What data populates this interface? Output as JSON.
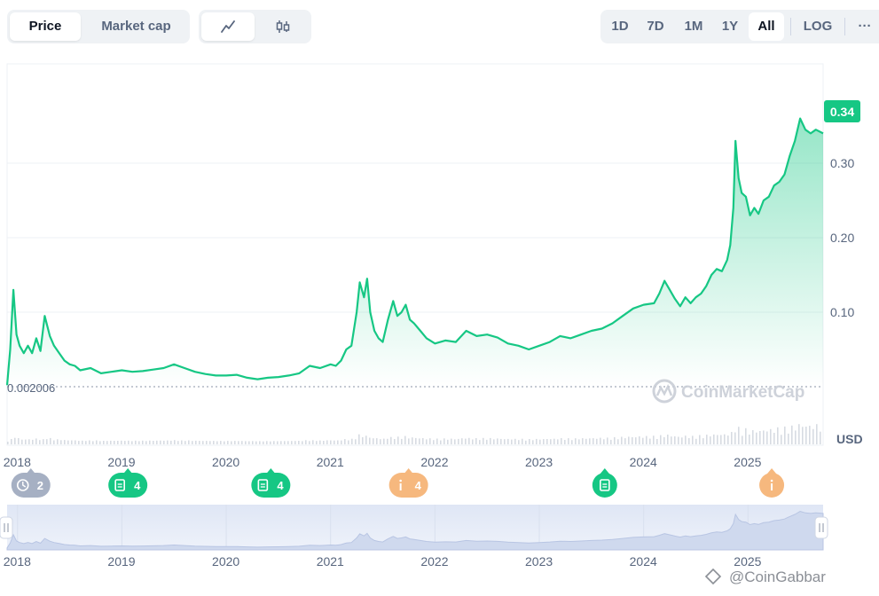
{
  "toolbar": {
    "type_toggle": {
      "price_label": "Price",
      "market_cap_label": "Market cap",
      "active": "price"
    },
    "chart_style": {
      "line_icon": "line-chart-icon",
      "candle_icon": "candlestick-icon",
      "active": "line"
    },
    "ranges": [
      {
        "label": "1D",
        "active": false
      },
      {
        "label": "7D",
        "active": false
      },
      {
        "label": "1M",
        "active": false
      },
      {
        "label": "1Y",
        "active": false
      },
      {
        "label": "All",
        "active": true
      }
    ],
    "log_label": "LOG",
    "more_label": "···"
  },
  "colors": {
    "line": "#16c784",
    "fill_top": "#16c784",
    "badge_green": "#16c784",
    "badge_orange": "#f6b87e",
    "badge_gray": "#a6b0c3",
    "grid": "#eef0f4",
    "volume": "#d7dbe2"
  },
  "chart_data": {
    "type": "line",
    "currency_label": "USD",
    "current_price_label": "0.34",
    "min_price_label": "0.002006",
    "watermark": "CoinMarketCap",
    "y_ticks": [
      {
        "value": 0.1,
        "label": "0.10"
      },
      {
        "value": 0.2,
        "label": "0.20"
      },
      {
        "value": 0.3,
        "label": "0.30"
      }
    ],
    "ylim": [
      0.0,
      0.4
    ],
    "xlim": [
      2017.9,
      2025.72
    ],
    "x_ticks": [
      "2018",
      "2019",
      "2020",
      "2021",
      "2022",
      "2023",
      "2024",
      "2025"
    ],
    "x_tick_values": [
      2018,
      2019,
      2020,
      2021,
      2022,
      2023,
      2024,
      2025
    ],
    "series": [
      {
        "values": [
          [
            2017.9,
            0.002
          ],
          [
            2017.93,
            0.05
          ],
          [
            2017.96,
            0.13
          ],
          [
            2017.99,
            0.07
          ],
          [
            2018.02,
            0.055
          ],
          [
            2018.06,
            0.045
          ],
          [
            2018.1,
            0.055
          ],
          [
            2018.14,
            0.045
          ],
          [
            2018.18,
            0.065
          ],
          [
            2018.22,
            0.048
          ],
          [
            2018.26,
            0.095
          ],
          [
            2018.31,
            0.068
          ],
          [
            2018.35,
            0.055
          ],
          [
            2018.4,
            0.045
          ],
          [
            2018.45,
            0.035
          ],
          [
            2018.5,
            0.03
          ],
          [
            2018.55,
            0.028
          ],
          [
            2018.6,
            0.022
          ],
          [
            2018.7,
            0.025
          ],
          [
            2018.8,
            0.018
          ],
          [
            2018.9,
            0.02
          ],
          [
            2019.0,
            0.022
          ],
          [
            2019.1,
            0.02
          ],
          [
            2019.2,
            0.021
          ],
          [
            2019.3,
            0.023
          ],
          [
            2019.4,
            0.025
          ],
          [
            2019.5,
            0.03
          ],
          [
            2019.6,
            0.025
          ],
          [
            2019.7,
            0.02
          ],
          [
            2019.8,
            0.017
          ],
          [
            2019.9,
            0.015
          ],
          [
            2020.0,
            0.015
          ],
          [
            2020.1,
            0.016
          ],
          [
            2020.2,
            0.012
          ],
          [
            2020.3,
            0.01
          ],
          [
            2020.4,
            0.012
          ],
          [
            2020.5,
            0.013
          ],
          [
            2020.6,
            0.015
          ],
          [
            2020.7,
            0.018
          ],
          [
            2020.8,
            0.028
          ],
          [
            2020.9,
            0.025
          ],
          [
            2021.0,
            0.03
          ],
          [
            2021.05,
            0.028
          ],
          [
            2021.1,
            0.035
          ],
          [
            2021.15,
            0.05
          ],
          [
            2021.2,
            0.055
          ],
          [
            2021.25,
            0.1
          ],
          [
            2021.28,
            0.14
          ],
          [
            2021.32,
            0.12
          ],
          [
            2021.35,
            0.145
          ],
          [
            2021.38,
            0.1
          ],
          [
            2021.42,
            0.075
          ],
          [
            2021.46,
            0.065
          ],
          [
            2021.5,
            0.06
          ],
          [
            2021.55,
            0.09
          ],
          [
            2021.6,
            0.115
          ],
          [
            2021.64,
            0.095
          ],
          [
            2021.68,
            0.1
          ],
          [
            2021.72,
            0.11
          ],
          [
            2021.76,
            0.09
          ],
          [
            2021.8,
            0.085
          ],
          [
            2021.86,
            0.075
          ],
          [
            2021.92,
            0.065
          ],
          [
            2022.0,
            0.058
          ],
          [
            2022.1,
            0.062
          ],
          [
            2022.2,
            0.06
          ],
          [
            2022.3,
            0.075
          ],
          [
            2022.4,
            0.068
          ],
          [
            2022.5,
            0.07
          ],
          [
            2022.6,
            0.066
          ],
          [
            2022.7,
            0.058
          ],
          [
            2022.8,
            0.055
          ],
          [
            2022.9,
            0.05
          ],
          [
            2023.0,
            0.055
          ],
          [
            2023.1,
            0.06
          ],
          [
            2023.2,
            0.068
          ],
          [
            2023.3,
            0.065
          ],
          [
            2023.4,
            0.07
          ],
          [
            2023.5,
            0.075
          ],
          [
            2023.6,
            0.078
          ],
          [
            2023.7,
            0.085
          ],
          [
            2023.8,
            0.095
          ],
          [
            2023.9,
            0.105
          ],
          [
            2024.0,
            0.11
          ],
          [
            2024.1,
            0.112
          ],
          [
            2024.15,
            0.125
          ],
          [
            2024.2,
            0.142
          ],
          [
            2024.25,
            0.13
          ],
          [
            2024.3,
            0.118
          ],
          [
            2024.35,
            0.108
          ],
          [
            2024.4,
            0.12
          ],
          [
            2024.45,
            0.112
          ],
          [
            2024.5,
            0.12
          ],
          [
            2024.55,
            0.125
          ],
          [
            2024.6,
            0.135
          ],
          [
            2024.65,
            0.15
          ],
          [
            2024.7,
            0.158
          ],
          [
            2024.75,
            0.155
          ],
          [
            2024.8,
            0.17
          ],
          [
            2024.83,
            0.19
          ],
          [
            2024.86,
            0.24
          ],
          [
            2024.88,
            0.33
          ],
          [
            2024.91,
            0.28
          ],
          [
            2024.94,
            0.26
          ],
          [
            2024.98,
            0.255
          ],
          [
            2025.02,
            0.23
          ],
          [
            2025.06,
            0.24
          ],
          [
            2025.1,
            0.232
          ],
          [
            2025.15,
            0.25
          ],
          [
            2025.2,
            0.255
          ],
          [
            2025.25,
            0.27
          ],
          [
            2025.3,
            0.275
          ],
          [
            2025.35,
            0.285
          ],
          [
            2025.4,
            0.31
          ],
          [
            2025.45,
            0.33
          ],
          [
            2025.5,
            0.36
          ],
          [
            2025.55,
            0.345
          ],
          [
            2025.6,
            0.34
          ],
          [
            2025.65,
            0.345
          ],
          [
            2025.72,
            0.34
          ]
        ]
      }
    ],
    "events": [
      {
        "x": 2018.0,
        "kind": "history",
        "count": "2",
        "color": "gray"
      },
      {
        "x": 2018.93,
        "kind": "document",
        "count": "4",
        "color": "green"
      },
      {
        "x": 2020.3,
        "kind": "document",
        "count": "4",
        "color": "green"
      },
      {
        "x": 2021.62,
        "kind": "info",
        "count": "4",
        "color": "orange"
      },
      {
        "x": 2023.5,
        "kind": "document",
        "count": "",
        "color": "green"
      },
      {
        "x": 2025.1,
        "kind": "info",
        "count": "",
        "color": "orange"
      }
    ]
  },
  "navigator": {
    "x_ticks": [
      "2018",
      "2019",
      "2020",
      "2021",
      "2022",
      "2023",
      "2024",
      "2025"
    ],
    "handle_left": "handle-icon",
    "handle_right": "handle-icon"
  },
  "footer": {
    "watermark": "@CoinGabbar"
  }
}
